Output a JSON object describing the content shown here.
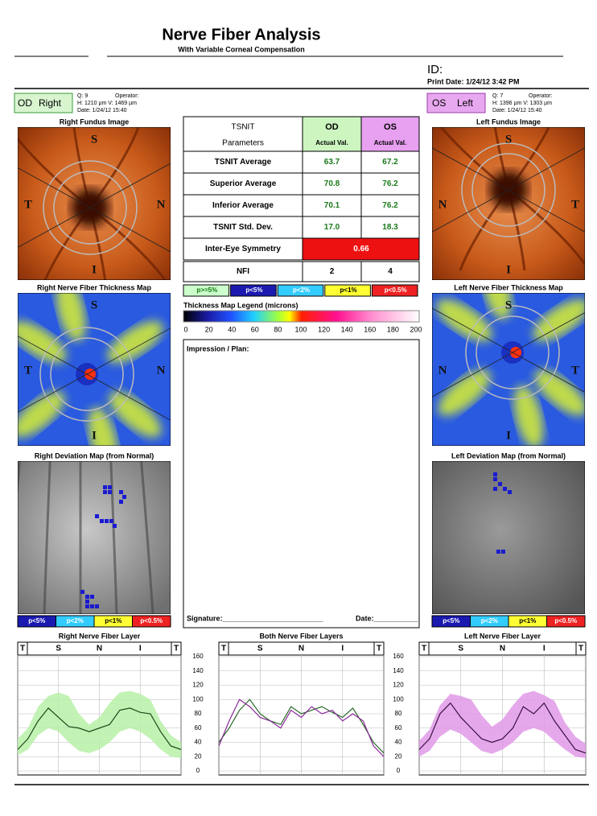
{
  "header": {
    "title": "Nerve Fiber Analysis",
    "subtitle": "With Variable Corneal Compensation",
    "id": "ID:",
    "print_date": "Print Date: 1/24/12 3:42 PM"
  },
  "od": {
    "eye": "OD",
    "side": "Right",
    "q": "Q: 9",
    "operator": "Operator:",
    "size": "H: 1210 µm V: 1469 µm",
    "date": "Date: 1/24/12 15:40"
  },
  "os": {
    "eye": "OS",
    "side": "Left",
    "q": "Q: 7",
    "operator": "Operator:",
    "size": "H: 1396 µm V: 1303 µm",
    "date": "Date: 1/24/12 15:40"
  },
  "images": {
    "right_fundus": "Right Fundus Image",
    "left_fundus": "Left Fundus Image",
    "right_thickness": "Right Nerve Fiber Thickness Map",
    "left_thickness": "Left Nerve Fiber Thickness Map",
    "right_deviation": "Right Deviation Map (from Normal)",
    "left_deviation": "Left Deviation Map (from Normal)"
  },
  "orientation": {
    "superior": "S",
    "temporal": "T",
    "nasal": "N",
    "inferior": "I"
  },
  "table": {
    "header": [
      [
        "TSNIT",
        "Parameters"
      ],
      [
        "OD",
        "Actual Val."
      ],
      [
        "OS",
        "Actual Val."
      ]
    ],
    "rows": [
      [
        "TSNIT Average",
        "63.7",
        "67.2"
      ],
      [
        "Superior Average",
        "70.8",
        "76.2"
      ],
      [
        "Inferior Average",
        "70.1",
        "76.2"
      ],
      [
        "TSNIT Std. Dev.",
        "17.0",
        "18.3"
      ],
      [
        "Inter-Eye Symmetry",
        "0.66"
      ],
      [
        "NFI",
        "2",
        "4"
      ]
    ]
  },
  "probability_legend": [
    "p>=5%",
    "p<5%",
    "p<2%",
    "p<1%",
    "p<0.5%"
  ],
  "thickness_legend": {
    "title": "Thickness Map Legend (microns)",
    "ticks": [
      0,
      20,
      40,
      60,
      80,
      100,
      120,
      140,
      160,
      180,
      200
    ]
  },
  "deviation_legend": [
    "p<5%",
    "p<2%",
    "p<1%",
    "p<0.5%"
  ],
  "impression": {
    "label": "Impression / Plan:",
    "signature": "Signature:_________________________",
    "date": "Date:___________"
  },
  "chart_data": [
    {
      "type": "line",
      "title": "Right Nerve Fiber Layer",
      "x": [
        0,
        16,
        32,
        48,
        64,
        80,
        96,
        112,
        128,
        144,
        160,
        176,
        192,
        208,
        224,
        240,
        256
      ],
      "xlim": [
        0,
        256
      ],
      "xticks": [
        {
          "value": 0,
          "label": "T"
        },
        {
          "value": 64,
          "label": "S"
        },
        {
          "value": 128,
          "label": "N"
        },
        {
          "value": 192,
          "label": "I"
        },
        {
          "value": 256,
          "label": "T"
        }
      ],
      "ylim": [
        0,
        160
      ],
      "yticks": [
        0,
        20,
        40,
        60,
        80,
        100,
        120,
        140,
        160
      ],
      "band": {
        "color": "#b8f0a8",
        "lower": [
          22,
          30,
          50,
          60,
          55,
          40,
          28,
          25,
          30,
          40,
          55,
          60,
          55,
          45,
          30,
          20,
          18
        ],
        "upper": [
          45,
          60,
          90,
          105,
          110,
          105,
          80,
          65,
          75,
          95,
          110,
          112,
          108,
          100,
          70,
          50,
          40
        ]
      },
      "series": [
        {
          "color": "#1a4a1a",
          "values": [
            30,
            45,
            70,
            88,
            75,
            62,
            60,
            55,
            60,
            65,
            85,
            88,
            82,
            80,
            55,
            35,
            30
          ]
        }
      ]
    },
    {
      "type": "line",
      "title": "Both Nerve Fiber Layers",
      "x": [
        0,
        16,
        32,
        48,
        64,
        80,
        96,
        112,
        128,
        144,
        160,
        176,
        192,
        208,
        224,
        240,
        256
      ],
      "xlim": [
        0,
        256
      ],
      "xticks": [
        {
          "value": 0,
          "label": "T"
        },
        {
          "value": 64,
          "label": "S"
        },
        {
          "value": 128,
          "label": "N"
        },
        {
          "value": 192,
          "label": "I"
        },
        {
          "value": 256,
          "label": "T"
        }
      ],
      "ylim": [
        0,
        160
      ],
      "yticks": [
        0,
        20,
        40,
        60,
        80,
        100,
        120,
        140,
        160
      ],
      "series": [
        {
          "color": "#2a6a2a",
          "values": [
            40,
            60,
            85,
            100,
            80,
            70,
            65,
            90,
            80,
            85,
            90,
            82,
            75,
            88,
            65,
            40,
            25
          ]
        },
        {
          "color": "#8a2a9a",
          "values": [
            35,
            70,
            100,
            90,
            75,
            70,
            60,
            85,
            75,
            90,
            80,
            85,
            70,
            80,
            70,
            35,
            20
          ]
        }
      ]
    },
    {
      "type": "line",
      "title": "Left Nerve Fiber Layer",
      "x": [
        0,
        16,
        32,
        48,
        64,
        80,
        96,
        112,
        128,
        144,
        160,
        176,
        192,
        208,
        224,
        240,
        256
      ],
      "xlim": [
        0,
        256
      ],
      "xticks": [
        {
          "value": 0,
          "label": "T"
        },
        {
          "value": 64,
          "label": "S"
        },
        {
          "value": 128,
          "label": "N"
        },
        {
          "value": 192,
          "label": "I"
        },
        {
          "value": 256,
          "label": "T"
        }
      ],
      "ylim": [
        0,
        160
      ],
      "yticks": [
        0,
        20,
        40,
        60,
        80,
        100,
        120,
        140,
        160
      ],
      "band": {
        "color": "#e09ae8",
        "lower": [
          20,
          28,
          48,
          58,
          52,
          40,
          28,
          24,
          30,
          40,
          55,
          60,
          55,
          42,
          30,
          20,
          18
        ],
        "upper": [
          42,
          58,
          92,
          108,
          105,
          100,
          78,
          62,
          72,
          92,
          108,
          112,
          106,
          98,
          68,
          48,
          38
        ]
      },
      "series": [
        {
          "color": "#3a1040",
          "values": [
            30,
            45,
            80,
            95,
            75,
            60,
            45,
            40,
            45,
            60,
            90,
            80,
            95,
            70,
            50,
            30,
            25
          ]
        }
      ]
    }
  ]
}
